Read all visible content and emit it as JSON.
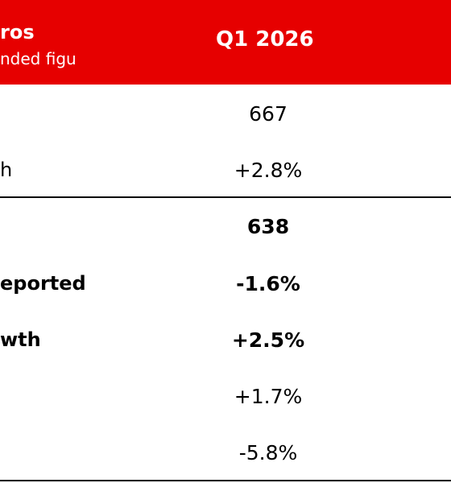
{
  "header": {
    "line1": "ros",
    "line2": "nded figu",
    "period": "Q1 2026"
  },
  "rows": [
    {
      "label": "",
      "value": "667",
      "bold": false
    },
    {
      "label": "h",
      "value": "+2.8%",
      "bold": false
    },
    {
      "label": "",
      "value": "638",
      "bold": true
    },
    {
      "label": "eported",
      "value": "-1.6%",
      "bold": true
    },
    {
      "label": "wth",
      "value": "+2.5%",
      "bold": true
    },
    {
      "label": "",
      "value": "+1.7%",
      "bold": false
    },
    {
      "label": "",
      "value": "-5.8%",
      "bold": false
    }
  ],
  "colors": {
    "header_background": "#e60000",
    "header_text": "#ffffff",
    "body_text": "#000000",
    "divider": "#000000"
  }
}
